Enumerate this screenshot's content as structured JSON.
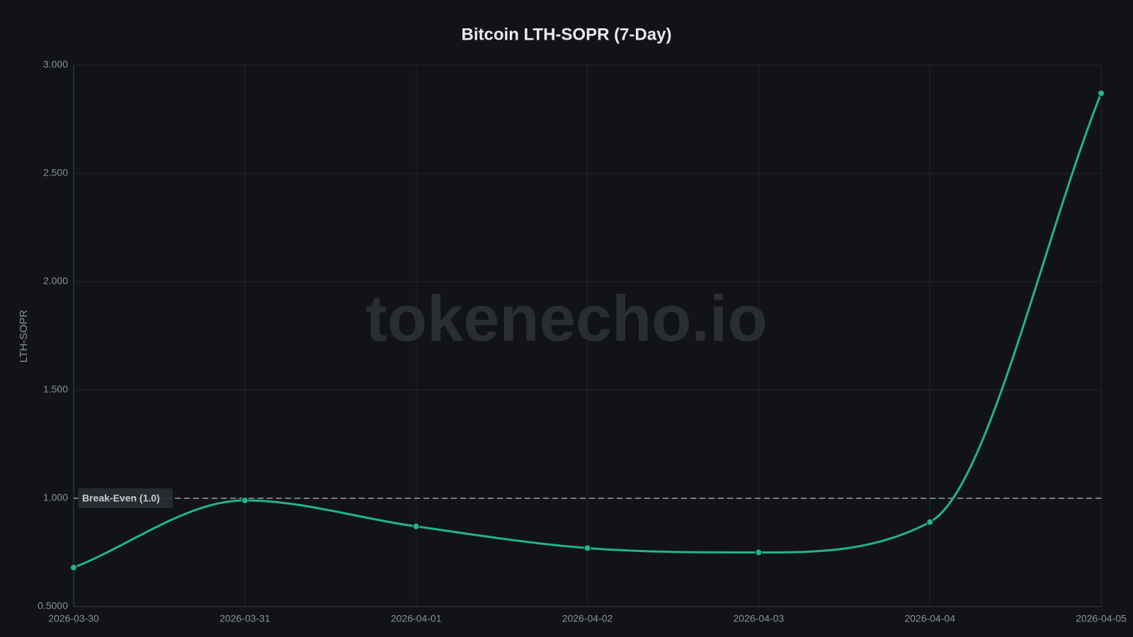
{
  "chart_data": {
    "type": "line",
    "title": "Bitcoin LTH-SOPR (7-Day)",
    "y_label": "LTH-SOPR",
    "watermark": "tokenecho.io",
    "categories": [
      "2026-03-30",
      "2026-03-31",
      "2026-04-01",
      "2026-04-02",
      "2026-04-03",
      "2026-04-04",
      "2026-04-05"
    ],
    "series": [
      {
        "name": "LTH-SOPR",
        "color": "#1fb784",
        "values": [
          0.68,
          0.99,
          0.87,
          0.77,
          0.75,
          0.89,
          2.87
        ]
      }
    ],
    "ylim": [
      0.5,
      3.0
    ],
    "yticks": [
      {
        "value": 0.5,
        "label": "0.5000"
      },
      {
        "value": 1.0,
        "label": "1.000"
      },
      {
        "value": 1.5,
        "label": "1.500"
      },
      {
        "value": 2.0,
        "label": "2.000"
      },
      {
        "value": 2.5,
        "label": "2.500"
      },
      {
        "value": 3.0,
        "label": "3.000"
      }
    ],
    "grid": true,
    "annotations": [
      {
        "label": "Break-Even (1.0)",
        "value": 1.0
      }
    ]
  }
}
